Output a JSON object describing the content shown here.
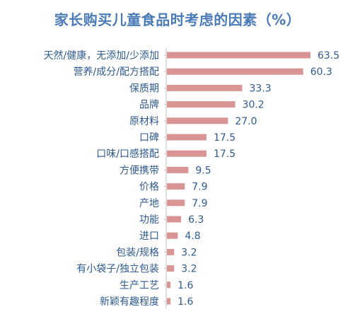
{
  "colors": {
    "title": "#4a7bb7",
    "text": "#2e5a8e",
    "bar": "#d99594",
    "axis": "#bfbfbf"
  },
  "chart_data": {
    "type": "bar",
    "orientation": "horizontal",
    "title": "家长购买儿童食品时考虑的因素（%）",
    "xlim": [
      0,
      63.5
    ],
    "grid": false,
    "categories": [
      "天然/健康，无添加/少添加",
      "营养/成分/配方搭配",
      "保质期",
      "品牌",
      "原材料",
      "口碑",
      "口味/口感搭配",
      "方便携带",
      "价格",
      "产地",
      "功能",
      "进口",
      "包装/规格",
      "有小袋子/独立包装",
      "生产工艺",
      "新颖有趣程度"
    ],
    "values": [
      63.5,
      60.3,
      33.3,
      30.2,
      27.0,
      17.5,
      17.5,
      9.5,
      7.9,
      7.9,
      6.3,
      4.8,
      3.2,
      3.2,
      1.6,
      1.6
    ],
    "value_labels": [
      "63.5",
      "60.3",
      "33.3",
      "30.2",
      "27.0",
      "17.5",
      "17.5",
      "9.5",
      "7.9",
      "7.9",
      "6.3",
      "4.8",
      "3.2",
      "3.2",
      "1.6",
      "1.6"
    ]
  }
}
